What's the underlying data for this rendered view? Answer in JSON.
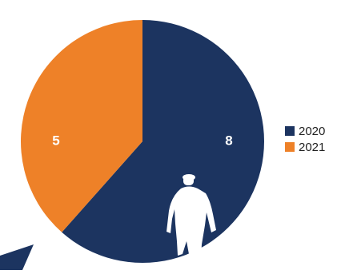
{
  "chart_data": {
    "type": "pie",
    "categories": [
      "2020",
      "2021"
    ],
    "values": [
      8,
      5
    ],
    "data_labels": [
      "8",
      "5"
    ],
    "colors": [
      "#1c3460",
      "#ee8128"
    ],
    "start_angle_deg": 0,
    "direction": "clockwise",
    "legend_position": "right",
    "title": "",
    "decorations": {
      "person_silhouette_color": "#ffffff",
      "accent_stroke_color": "#1c3460"
    }
  }
}
